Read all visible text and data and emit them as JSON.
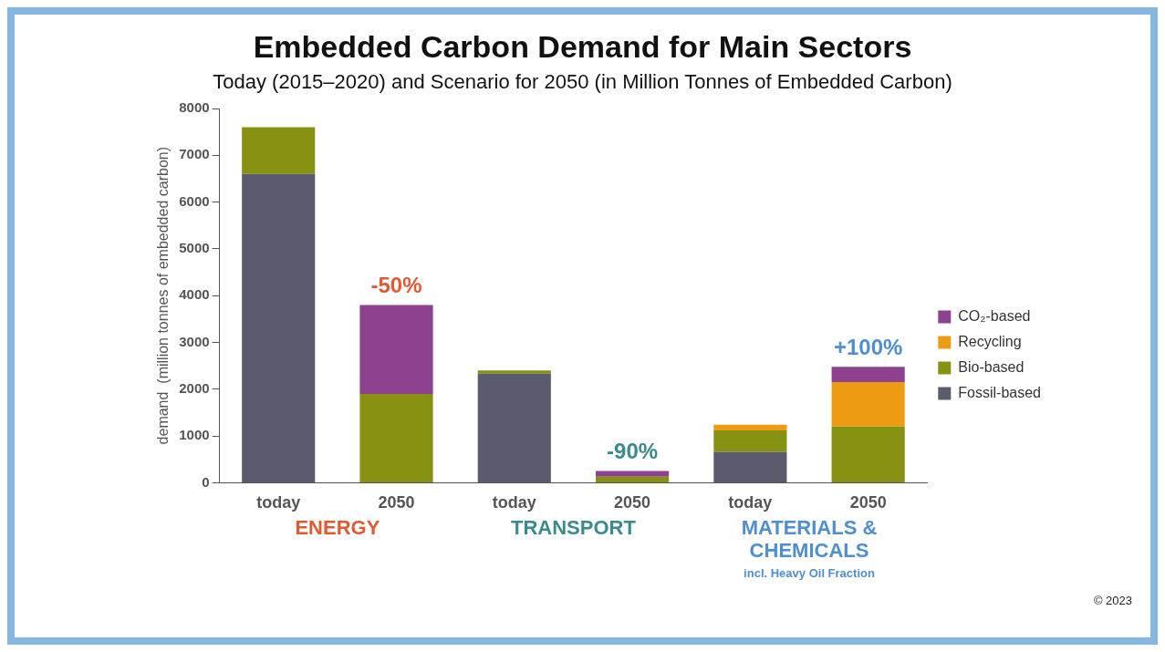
{
  "chart_data": {
    "type": "bar",
    "title": "Embedded Carbon Demand for Main Sectors",
    "subtitle": "Today (2015–2020) and Scenario for 2050 (in Million Tonnes of Embedded Carbon)",
    "ylabel": "demand  (million tonnes of embedded carbon)",
    "categories": [
      "today",
      "2050",
      "today",
      "2050",
      "today",
      "2050"
    ],
    "stacked": true,
    "ylim": [
      0,
      8000
    ],
    "yticks": [
      0,
      1000,
      2000,
      3000,
      4000,
      5000,
      6000,
      7000,
      8000
    ],
    "grid": false,
    "legend": "right",
    "series": [
      {
        "name": "Fossil-based",
        "color": "#5a5b6d",
        "values": [
          6600,
          0,
          2330,
          0,
          660,
          0
        ]
      },
      {
        "name": "Bio-based",
        "color": "#879112",
        "values": [
          1000,
          1900,
          70,
          130,
          460,
          1200
        ]
      },
      {
        "name": "Recycling",
        "color": "#ee9b14",
        "values": [
          0,
          0,
          0,
          0,
          120,
          950
        ]
      },
      {
        "name": "CO₂-based",
        "color": "#8e418f",
        "values": [
          0,
          1900,
          0,
          120,
          0,
          330
        ]
      }
    ],
    "annotations": [
      "-50%",
      "-90%",
      "+100%",
      "ENERGY",
      "TRANSPORT",
      "MATERIALS & CHEMICALS",
      "incl. Heavy Oil Fraction",
      "© 2023"
    ]
  }
}
